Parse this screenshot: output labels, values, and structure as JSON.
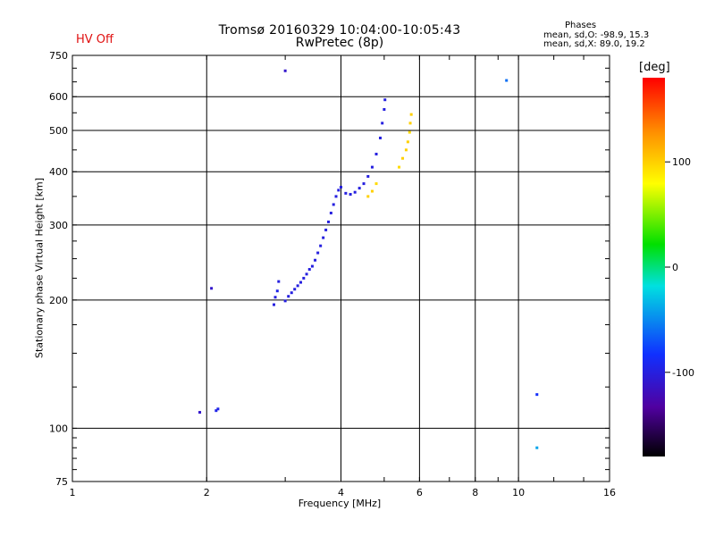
{
  "header": {
    "title": "Tromsø 20160329 10:04:00-10:05:43",
    "subtitle": "RwPretec (8p)",
    "hv_status": "HV Off",
    "phases_title": "Phases",
    "phases_o": "mean, sd,O: -98.9, 15.3",
    "phases_x": "mean, sd,X:  89.0, 19.2"
  },
  "colorbar": {
    "unit": "[deg]",
    "ticks": [
      {
        "value": 100,
        "label": "100"
      },
      {
        "value": 0,
        "label": "0"
      },
      {
        "value": -100,
        "label": "-100"
      }
    ],
    "range": [
      -180,
      180
    ]
  },
  "chart_data": {
    "type": "scatter",
    "xlabel": "Frequency [MHz]",
    "ylabel": "Stationary phase Virtual Height [km]",
    "x_scale": "log",
    "y_scale": "log",
    "xlim": [
      1,
      16
    ],
    "ylim": [
      75,
      750
    ],
    "x_ticks": [
      {
        "value": 1,
        "label": "1"
      },
      {
        "value": 2,
        "label": "2"
      },
      {
        "value": 4,
        "label": "4"
      },
      {
        "value": 6,
        "label": "6"
      },
      {
        "value": 8,
        "label": "8"
      },
      {
        "value": 10,
        "label": "10"
      },
      {
        "value": 16,
        "label": "16"
      }
    ],
    "y_ticks": [
      {
        "value": 75,
        "label": "75"
      },
      {
        "value": 100,
        "label": "100"
      },
      {
        "value": 200,
        "label": "200"
      },
      {
        "value": 300,
        "label": "300"
      },
      {
        "value": 400,
        "label": "400"
      },
      {
        "value": 500,
        "label": "500"
      },
      {
        "value": 600,
        "label": "600"
      },
      {
        "value": 750,
        "label": "750"
      }
    ],
    "x_gridlines": [
      2,
      4,
      6,
      8,
      10
    ],
    "y_gridlines": [
      100,
      200,
      300,
      400,
      500,
      600
    ],
    "colorscale": "rainbow",
    "points": [
      {
        "x": 2.83,
        "y": 195,
        "phase": -100
      },
      {
        "x": 2.85,
        "y": 203,
        "phase": -100
      },
      {
        "x": 2.88,
        "y": 210,
        "phase": -95
      },
      {
        "x": 2.9,
        "y": 221,
        "phase": -100
      },
      {
        "x": 3.0,
        "y": 199,
        "phase": -100
      },
      {
        "x": 3.05,
        "y": 204,
        "phase": -100
      },
      {
        "x": 3.1,
        "y": 208,
        "phase": -100
      },
      {
        "x": 3.15,
        "y": 212,
        "phase": -100
      },
      {
        "x": 3.2,
        "y": 216,
        "phase": -100
      },
      {
        "x": 3.25,
        "y": 220,
        "phase": -100
      },
      {
        "x": 3.3,
        "y": 225,
        "phase": -100
      },
      {
        "x": 3.35,
        "y": 230,
        "phase": -100
      },
      {
        "x": 3.4,
        "y": 236,
        "phase": -100
      },
      {
        "x": 3.45,
        "y": 240,
        "phase": -100
      },
      {
        "x": 3.5,
        "y": 248,
        "phase": -100
      },
      {
        "x": 3.55,
        "y": 258,
        "phase": -100
      },
      {
        "x": 3.6,
        "y": 268,
        "phase": -100
      },
      {
        "x": 3.65,
        "y": 280,
        "phase": -100
      },
      {
        "x": 3.7,
        "y": 292,
        "phase": -100
      },
      {
        "x": 3.75,
        "y": 305,
        "phase": -100
      },
      {
        "x": 3.8,
        "y": 320,
        "phase": -100
      },
      {
        "x": 3.85,
        "y": 335,
        "phase": -100
      },
      {
        "x": 3.9,
        "y": 350,
        "phase": -100
      },
      {
        "x": 3.95,
        "y": 362,
        "phase": -100
      },
      {
        "x": 4.0,
        "y": 368,
        "phase": -100
      },
      {
        "x": 4.1,
        "y": 356,
        "phase": -100
      },
      {
        "x": 4.2,
        "y": 354,
        "phase": -100
      },
      {
        "x": 4.3,
        "y": 358,
        "phase": -100
      },
      {
        "x": 4.4,
        "y": 366,
        "phase": -100
      },
      {
        "x": 4.5,
        "y": 375,
        "phase": -100
      },
      {
        "x": 4.6,
        "y": 390,
        "phase": -100
      },
      {
        "x": 4.7,
        "y": 410,
        "phase": -100
      },
      {
        "x": 4.8,
        "y": 440,
        "phase": -100
      },
      {
        "x": 4.9,
        "y": 480,
        "phase": -100
      },
      {
        "x": 4.95,
        "y": 520,
        "phase": -100
      },
      {
        "x": 5.0,
        "y": 560,
        "phase": -100
      },
      {
        "x": 5.02,
        "y": 590,
        "phase": -100
      },
      {
        "x": 4.6,
        "y": 350,
        "phase": 100
      },
      {
        "x": 4.7,
        "y": 360,
        "phase": 100
      },
      {
        "x": 4.8,
        "y": 375,
        "phase": 95
      },
      {
        "x": 5.4,
        "y": 410,
        "phase": 95
      },
      {
        "x": 5.5,
        "y": 430,
        "phase": 100
      },
      {
        "x": 5.6,
        "y": 450,
        "phase": 100
      },
      {
        "x": 5.65,
        "y": 470,
        "phase": 100
      },
      {
        "x": 5.7,
        "y": 495,
        "phase": 95
      },
      {
        "x": 5.72,
        "y": 520,
        "phase": 100
      },
      {
        "x": 5.75,
        "y": 545,
        "phase": 100
      },
      {
        "x": 2.1,
        "y": 110,
        "phase": -95
      },
      {
        "x": 2.12,
        "y": 111,
        "phase": -95
      },
      {
        "x": 1.93,
        "y": 109,
        "phase": -110
      },
      {
        "x": 2.05,
        "y": 213,
        "phase": -110
      },
      {
        "x": 3.0,
        "y": 690,
        "phase": -110
      },
      {
        "x": 9.4,
        "y": 655,
        "phase": -60
      },
      {
        "x": 11.0,
        "y": 90,
        "phase": -40
      },
      {
        "x": 11.0,
        "y": 120,
        "phase": -85
      }
    ]
  }
}
